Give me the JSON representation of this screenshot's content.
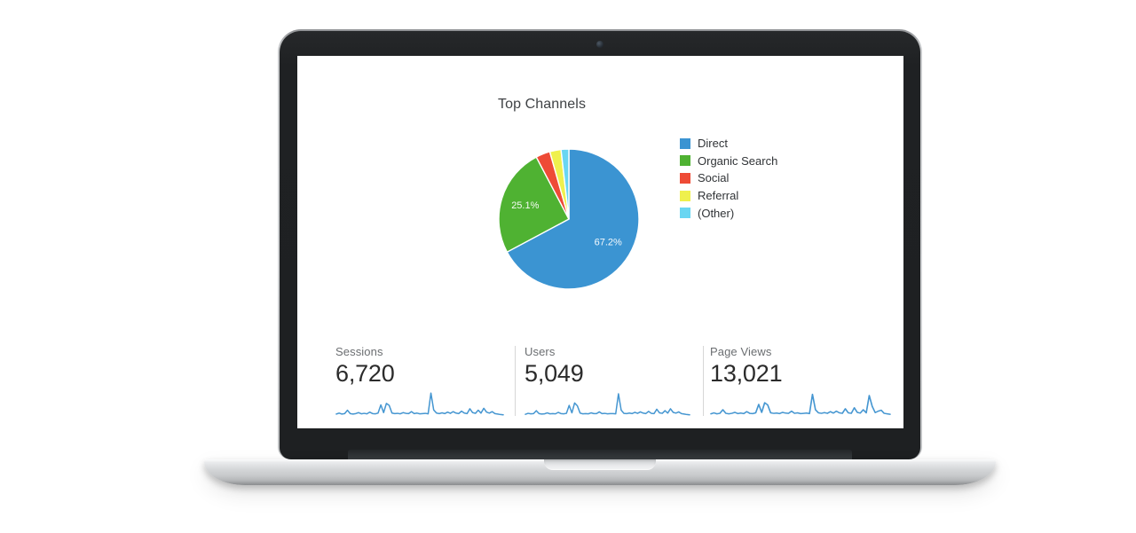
{
  "chart_data": [
    {
      "type": "pie",
      "title": "Top Channels",
      "start_angle_deg": 0,
      "direction": "clockwise",
      "legend_position": "right",
      "slices": [
        {
          "label": "Direct",
          "value": 67.2,
          "pct_label": "67.2%",
          "color": "#3B94D2"
        },
        {
          "label": "Organic Search",
          "value": 25.1,
          "pct_label": "25.1%",
          "color": "#4FB232"
        },
        {
          "label": "Social",
          "value": 3.3,
          "pct_label": "",
          "color": "#EE4B36"
        },
        {
          "label": "Referral",
          "value": 2.6,
          "pct_label": "",
          "color": "#EFF04D"
        },
        {
          "label": "(Other)",
          "value": 1.8,
          "pct_label": "",
          "color": "#69D6F2"
        }
      ]
    },
    {
      "type": "line",
      "name": "Sessions sparkline",
      "values": [
        8,
        12,
        8,
        10,
        24,
        10,
        8,
        10,
        14,
        9,
        11,
        9,
        16,
        10,
        9,
        12,
        46,
        14,
        52,
        44,
        12,
        10,
        11,
        9,
        14,
        11,
        10,
        18,
        10,
        12,
        9,
        10,
        11,
        9,
        95,
        25,
        12,
        10,
        13,
        10,
        16,
        11,
        18,
        12,
        10,
        20,
        12,
        10,
        30,
        14,
        11,
        24,
        12,
        32,
        16,
        12,
        18,
        10,
        8,
        6,
        5
      ]
    },
    {
      "type": "line",
      "name": "Users sparkline",
      "values": [
        7,
        11,
        9,
        10,
        22,
        10,
        8,
        9,
        13,
        9,
        10,
        9,
        15,
        10,
        9,
        11,
        44,
        13,
        54,
        42,
        12,
        9,
        10,
        9,
        13,
        10,
        10,
        17,
        10,
        11,
        9,
        10,
        10,
        9,
        92,
        24,
        11,
        10,
        12,
        10,
        15,
        11,
        17,
        12,
        10,
        19,
        11,
        10,
        28,
        13,
        11,
        22,
        12,
        30,
        15,
        12,
        17,
        10,
        8,
        6,
        5
      ]
    },
    {
      "type": "line",
      "name": "Page Views sparkline",
      "values": [
        9,
        13,
        9,
        11,
        26,
        11,
        9,
        11,
        15,
        10,
        12,
        10,
        18,
        11,
        10,
        13,
        48,
        15,
        55,
        46,
        13,
        11,
        12,
        10,
        15,
        12,
        11,
        20,
        11,
        13,
        10,
        11,
        12,
        10,
        90,
        26,
        13,
        11,
        14,
        11,
        18,
        12,
        20,
        13,
        11,
        30,
        13,
        11,
        34,
        15,
        12,
        26,
        13,
        85,
        40,
        14,
        20,
        24,
        11,
        9,
        7
      ]
    }
  ],
  "dashboard": {
    "title": "Top Channels",
    "spark_color": "#4596D1",
    "divider_color": "#d6d6d6",
    "metrics": [
      {
        "label": "Sessions",
        "value": "6,720"
      },
      {
        "label": "Users",
        "value": "5,049"
      },
      {
        "label": "Page Views",
        "value": "13,021"
      }
    ]
  },
  "laptop": {
    "bezel_color": "#1f2123",
    "body_color": "#d2d4d6"
  }
}
